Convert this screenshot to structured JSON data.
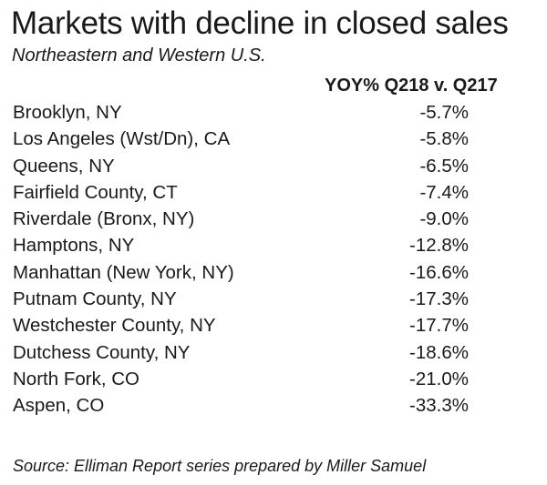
{
  "chart_data": {
    "type": "table",
    "title": "Markets with decline in closed sales",
    "subtitle": "Northeastern and Western U.S.",
    "column_header": "YOY% Q218 v. Q217",
    "rows": [
      {
        "market": "Brooklyn, NY",
        "value": "-5.7%"
      },
      {
        "market": "Los Angeles (Wst/Dn), CA",
        "value": "-5.8%"
      },
      {
        "market": "Queens, NY",
        "value": "-6.5%"
      },
      {
        "market": "Fairfield County, CT",
        "value": "-7.4%"
      },
      {
        "market": "Riverdale (Bronx, NY)",
        "value": "-9.0%"
      },
      {
        "market": "Hamptons, NY",
        "value": "-12.8%"
      },
      {
        "market": "Manhattan (New York, NY)",
        "value": "-16.6%"
      },
      {
        "market": "Putnam County, NY",
        "value": "-17.3%"
      },
      {
        "market": "Westchester County, NY",
        "value": "-17.7%"
      },
      {
        "market": "Dutchess County, NY",
        "value": "-18.6%"
      },
      {
        "market": "North Fork, CO",
        "value": "-21.0%"
      },
      {
        "market": "Aspen, CO",
        "value": "-33.3%"
      }
    ],
    "source": "Source: Elliman Report series prepared by Miller Samuel"
  }
}
